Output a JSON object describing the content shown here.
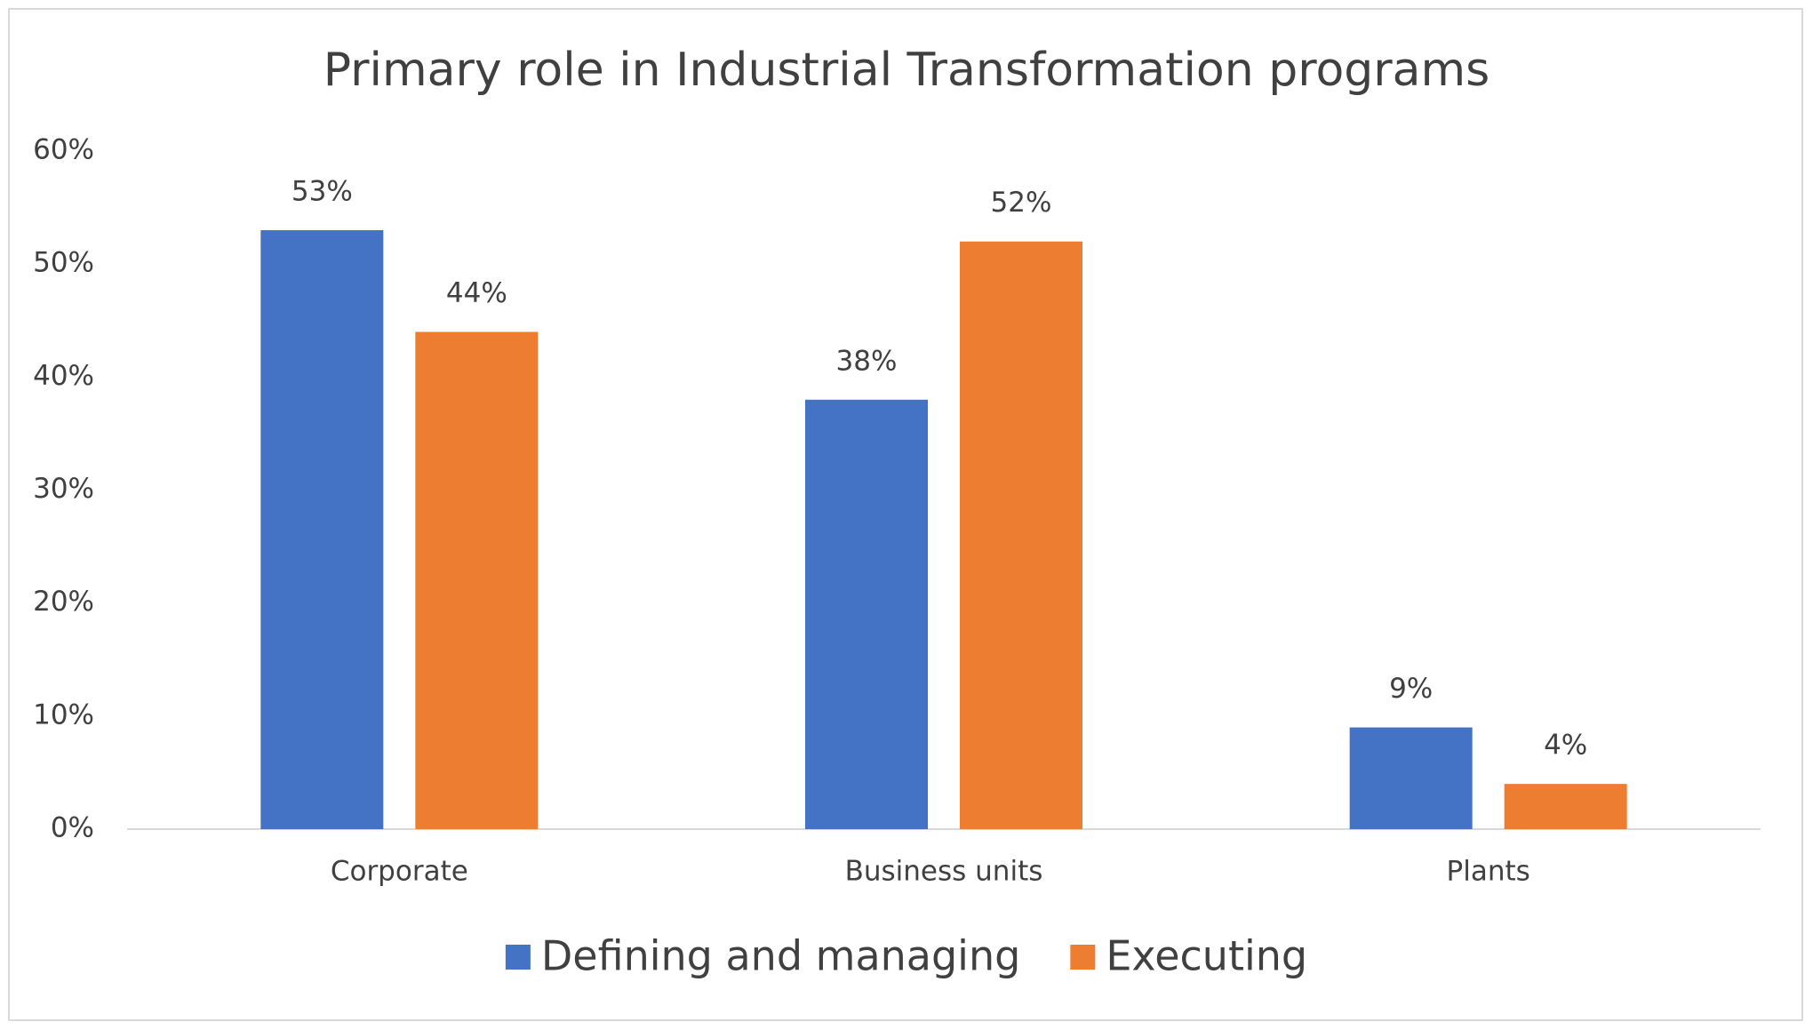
{
  "chart_data": {
    "type": "bar",
    "title": "Primary role in Industrial Transformation programs",
    "categories": [
      "Corporate",
      "Business units",
      "Plants"
    ],
    "series": [
      {
        "name": "Defining and managing",
        "color": "#4472c4",
        "values": [
          53,
          38,
          9
        ],
        "value_labels": [
          "53%",
          "38%",
          "9%"
        ]
      },
      {
        "name": "Executing",
        "color": "#ed7d31",
        "values": [
          44,
          52,
          4
        ],
        "value_labels": [
          "44%",
          "52%",
          "4%"
        ]
      }
    ],
    "ylim": [
      0,
      60
    ],
    "yticks": [
      {
        "value": 0,
        "label": "0%"
      },
      {
        "value": 10,
        "label": "10%"
      },
      {
        "value": 20,
        "label": "20%"
      },
      {
        "value": 30,
        "label": "30%"
      },
      {
        "value": 40,
        "label": "40%"
      },
      {
        "value": 50,
        "label": "50%"
      },
      {
        "value": 60,
        "label": "60%"
      }
    ],
    "grid": false,
    "legend": "bottom"
  }
}
